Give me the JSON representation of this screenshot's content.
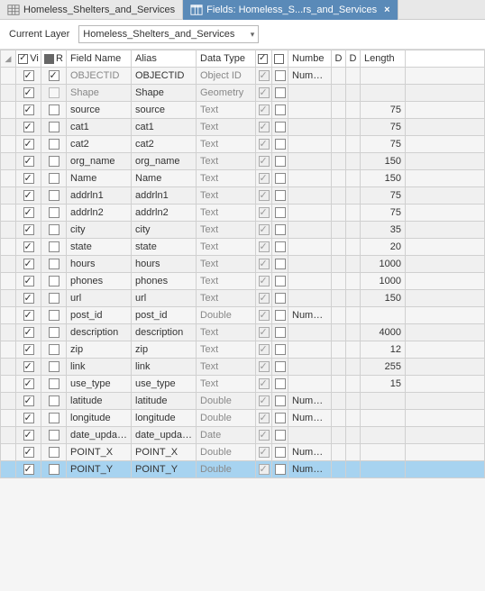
{
  "tabs": [
    {
      "label": "Homeless_Shelters_and_Services",
      "active": false
    },
    {
      "label": "Fields:  Homeless_S...rs_and_Services",
      "active": true
    }
  ],
  "currentLayerLabel": "Current Layer",
  "currentLayerValue": "Homeless_Shelters_and_Services",
  "columns": {
    "vi": "Vi",
    "r": "R",
    "fieldName": "Field Name",
    "alias": "Alias",
    "dataType": "Data Type",
    "numbe": "Numbe",
    "d1": "D",
    "d2": "D",
    "length": "Length"
  },
  "rows": [
    {
      "vi": true,
      "r": true,
      "disabledR": false,
      "fieldName": "OBJECTID",
      "alias": "OBJECTID",
      "dataType": "Object ID",
      "greyName": true,
      "greyType": true,
      "nullGrey": true,
      "hasNumeric": true,
      "length": "",
      "alt": false,
      "sel": false
    },
    {
      "vi": true,
      "r": false,
      "disabledR": true,
      "fieldName": "Shape",
      "alias": "Shape",
      "dataType": "Geometry",
      "greyName": true,
      "greyType": true,
      "nullGrey": true,
      "hasNumeric": false,
      "length": "",
      "alt": true,
      "sel": false
    },
    {
      "vi": true,
      "r": false,
      "disabledR": false,
      "fieldName": "source",
      "alias": "source",
      "dataType": "Text",
      "greyName": false,
      "greyType": true,
      "nullGrey": true,
      "hasNumeric": false,
      "length": "75",
      "alt": false,
      "sel": false
    },
    {
      "vi": true,
      "r": false,
      "disabledR": false,
      "fieldName": "cat1",
      "alias": "cat1",
      "dataType": "Text",
      "greyName": false,
      "greyType": true,
      "nullGrey": true,
      "hasNumeric": false,
      "length": "75",
      "alt": true,
      "sel": false
    },
    {
      "vi": true,
      "r": false,
      "disabledR": false,
      "fieldName": "cat2",
      "alias": "cat2",
      "dataType": "Text",
      "greyName": false,
      "greyType": true,
      "nullGrey": true,
      "hasNumeric": false,
      "length": "75",
      "alt": false,
      "sel": false
    },
    {
      "vi": true,
      "r": false,
      "disabledR": false,
      "fieldName": "org_name",
      "alias": "org_name",
      "dataType": "Text",
      "greyName": false,
      "greyType": true,
      "nullGrey": true,
      "hasNumeric": false,
      "length": "150",
      "alt": true,
      "sel": false
    },
    {
      "vi": true,
      "r": false,
      "disabledR": false,
      "fieldName": "Name",
      "alias": "Name",
      "dataType": "Text",
      "greyName": false,
      "greyType": true,
      "nullGrey": true,
      "hasNumeric": false,
      "length": "150",
      "alt": false,
      "sel": false
    },
    {
      "vi": true,
      "r": false,
      "disabledR": false,
      "fieldName": "addrln1",
      "alias": "addrln1",
      "dataType": "Text",
      "greyName": false,
      "greyType": true,
      "nullGrey": true,
      "hasNumeric": false,
      "length": "75",
      "alt": true,
      "sel": false
    },
    {
      "vi": true,
      "r": false,
      "disabledR": false,
      "fieldName": "addrln2",
      "alias": "addrln2",
      "dataType": "Text",
      "greyName": false,
      "greyType": true,
      "nullGrey": true,
      "hasNumeric": false,
      "length": "75",
      "alt": false,
      "sel": false
    },
    {
      "vi": true,
      "r": false,
      "disabledR": false,
      "fieldName": "city",
      "alias": "city",
      "dataType": "Text",
      "greyName": false,
      "greyType": true,
      "nullGrey": true,
      "hasNumeric": false,
      "length": "35",
      "alt": true,
      "sel": false
    },
    {
      "vi": true,
      "r": false,
      "disabledR": false,
      "fieldName": "state",
      "alias": "state",
      "dataType": "Text",
      "greyName": false,
      "greyType": true,
      "nullGrey": true,
      "hasNumeric": false,
      "length": "20",
      "alt": false,
      "sel": false
    },
    {
      "vi": true,
      "r": false,
      "disabledR": false,
      "fieldName": "hours",
      "alias": "hours",
      "dataType": "Text",
      "greyName": false,
      "greyType": true,
      "nullGrey": true,
      "hasNumeric": false,
      "length": "1000",
      "alt": true,
      "sel": false
    },
    {
      "vi": true,
      "r": false,
      "disabledR": false,
      "fieldName": "phones",
      "alias": "phones",
      "dataType": "Text",
      "greyName": false,
      "greyType": true,
      "nullGrey": true,
      "hasNumeric": false,
      "length": "1000",
      "alt": false,
      "sel": false
    },
    {
      "vi": true,
      "r": false,
      "disabledR": false,
      "fieldName": "url",
      "alias": "url",
      "dataType": "Text",
      "greyName": false,
      "greyType": true,
      "nullGrey": true,
      "hasNumeric": false,
      "length": "150",
      "alt": true,
      "sel": false
    },
    {
      "vi": true,
      "r": false,
      "disabledR": false,
      "fieldName": "post_id",
      "alias": "post_id",
      "dataType": "Double",
      "greyName": false,
      "greyType": true,
      "nullGrey": true,
      "hasNumeric": true,
      "length": "",
      "alt": false,
      "sel": false
    },
    {
      "vi": true,
      "r": false,
      "disabledR": false,
      "fieldName": "description",
      "alias": "description",
      "dataType": "Text",
      "greyName": false,
      "greyType": true,
      "nullGrey": true,
      "hasNumeric": false,
      "length": "4000",
      "alt": true,
      "sel": false
    },
    {
      "vi": true,
      "r": false,
      "disabledR": false,
      "fieldName": "zip",
      "alias": "zip",
      "dataType": "Text",
      "greyName": false,
      "greyType": true,
      "nullGrey": true,
      "hasNumeric": false,
      "length": "12",
      "alt": false,
      "sel": false
    },
    {
      "vi": true,
      "r": false,
      "disabledR": false,
      "fieldName": "link",
      "alias": "link",
      "dataType": "Text",
      "greyName": false,
      "greyType": true,
      "nullGrey": true,
      "hasNumeric": false,
      "length": "255",
      "alt": true,
      "sel": false
    },
    {
      "vi": true,
      "r": false,
      "disabledR": false,
      "fieldName": "use_type",
      "alias": "use_type",
      "dataType": "Text",
      "greyName": false,
      "greyType": true,
      "nullGrey": true,
      "hasNumeric": false,
      "length": "15",
      "alt": false,
      "sel": false
    },
    {
      "vi": true,
      "r": false,
      "disabledR": false,
      "fieldName": "latitude",
      "alias": "latitude",
      "dataType": "Double",
      "greyName": false,
      "greyType": true,
      "nullGrey": true,
      "hasNumeric": true,
      "length": "",
      "alt": true,
      "sel": false
    },
    {
      "vi": true,
      "r": false,
      "disabledR": false,
      "fieldName": "longitude",
      "alias": "longitude",
      "dataType": "Double",
      "greyName": false,
      "greyType": true,
      "nullGrey": true,
      "hasNumeric": true,
      "length": "",
      "alt": false,
      "sel": false
    },
    {
      "vi": true,
      "r": false,
      "disabledR": false,
      "fieldName": "date_updated",
      "alias": "date_updated",
      "dataType": "Date",
      "greyName": false,
      "greyType": true,
      "nullGrey": true,
      "hasNumeric": false,
      "length": "",
      "alt": true,
      "sel": false
    },
    {
      "vi": true,
      "r": false,
      "disabledR": false,
      "fieldName": "POINT_X",
      "alias": "POINT_X",
      "dataType": "Double",
      "greyName": false,
      "greyType": true,
      "nullGrey": true,
      "hasNumeric": true,
      "length": "",
      "alt": false,
      "sel": false
    },
    {
      "vi": true,
      "r": false,
      "disabledR": false,
      "fieldName": "POINT_Y",
      "alias": "POINT_Y",
      "dataType": "Double",
      "greyName": false,
      "greyType": true,
      "nullGrey": true,
      "hasNumeric": true,
      "length": "",
      "alt": true,
      "sel": true
    }
  ],
  "numericLabel": "Numeric",
  "colWidths": {
    "handle": "17px",
    "vi": "28px",
    "r": "28px",
    "fieldName": "72px",
    "alias": "72px",
    "dataType": "66px",
    "nullchk": "18px",
    "numchk": "18px",
    "numbe": "48px",
    "d1": "16px",
    "d2": "16px",
    "length": "50px",
    "spacer": "auto"
  }
}
